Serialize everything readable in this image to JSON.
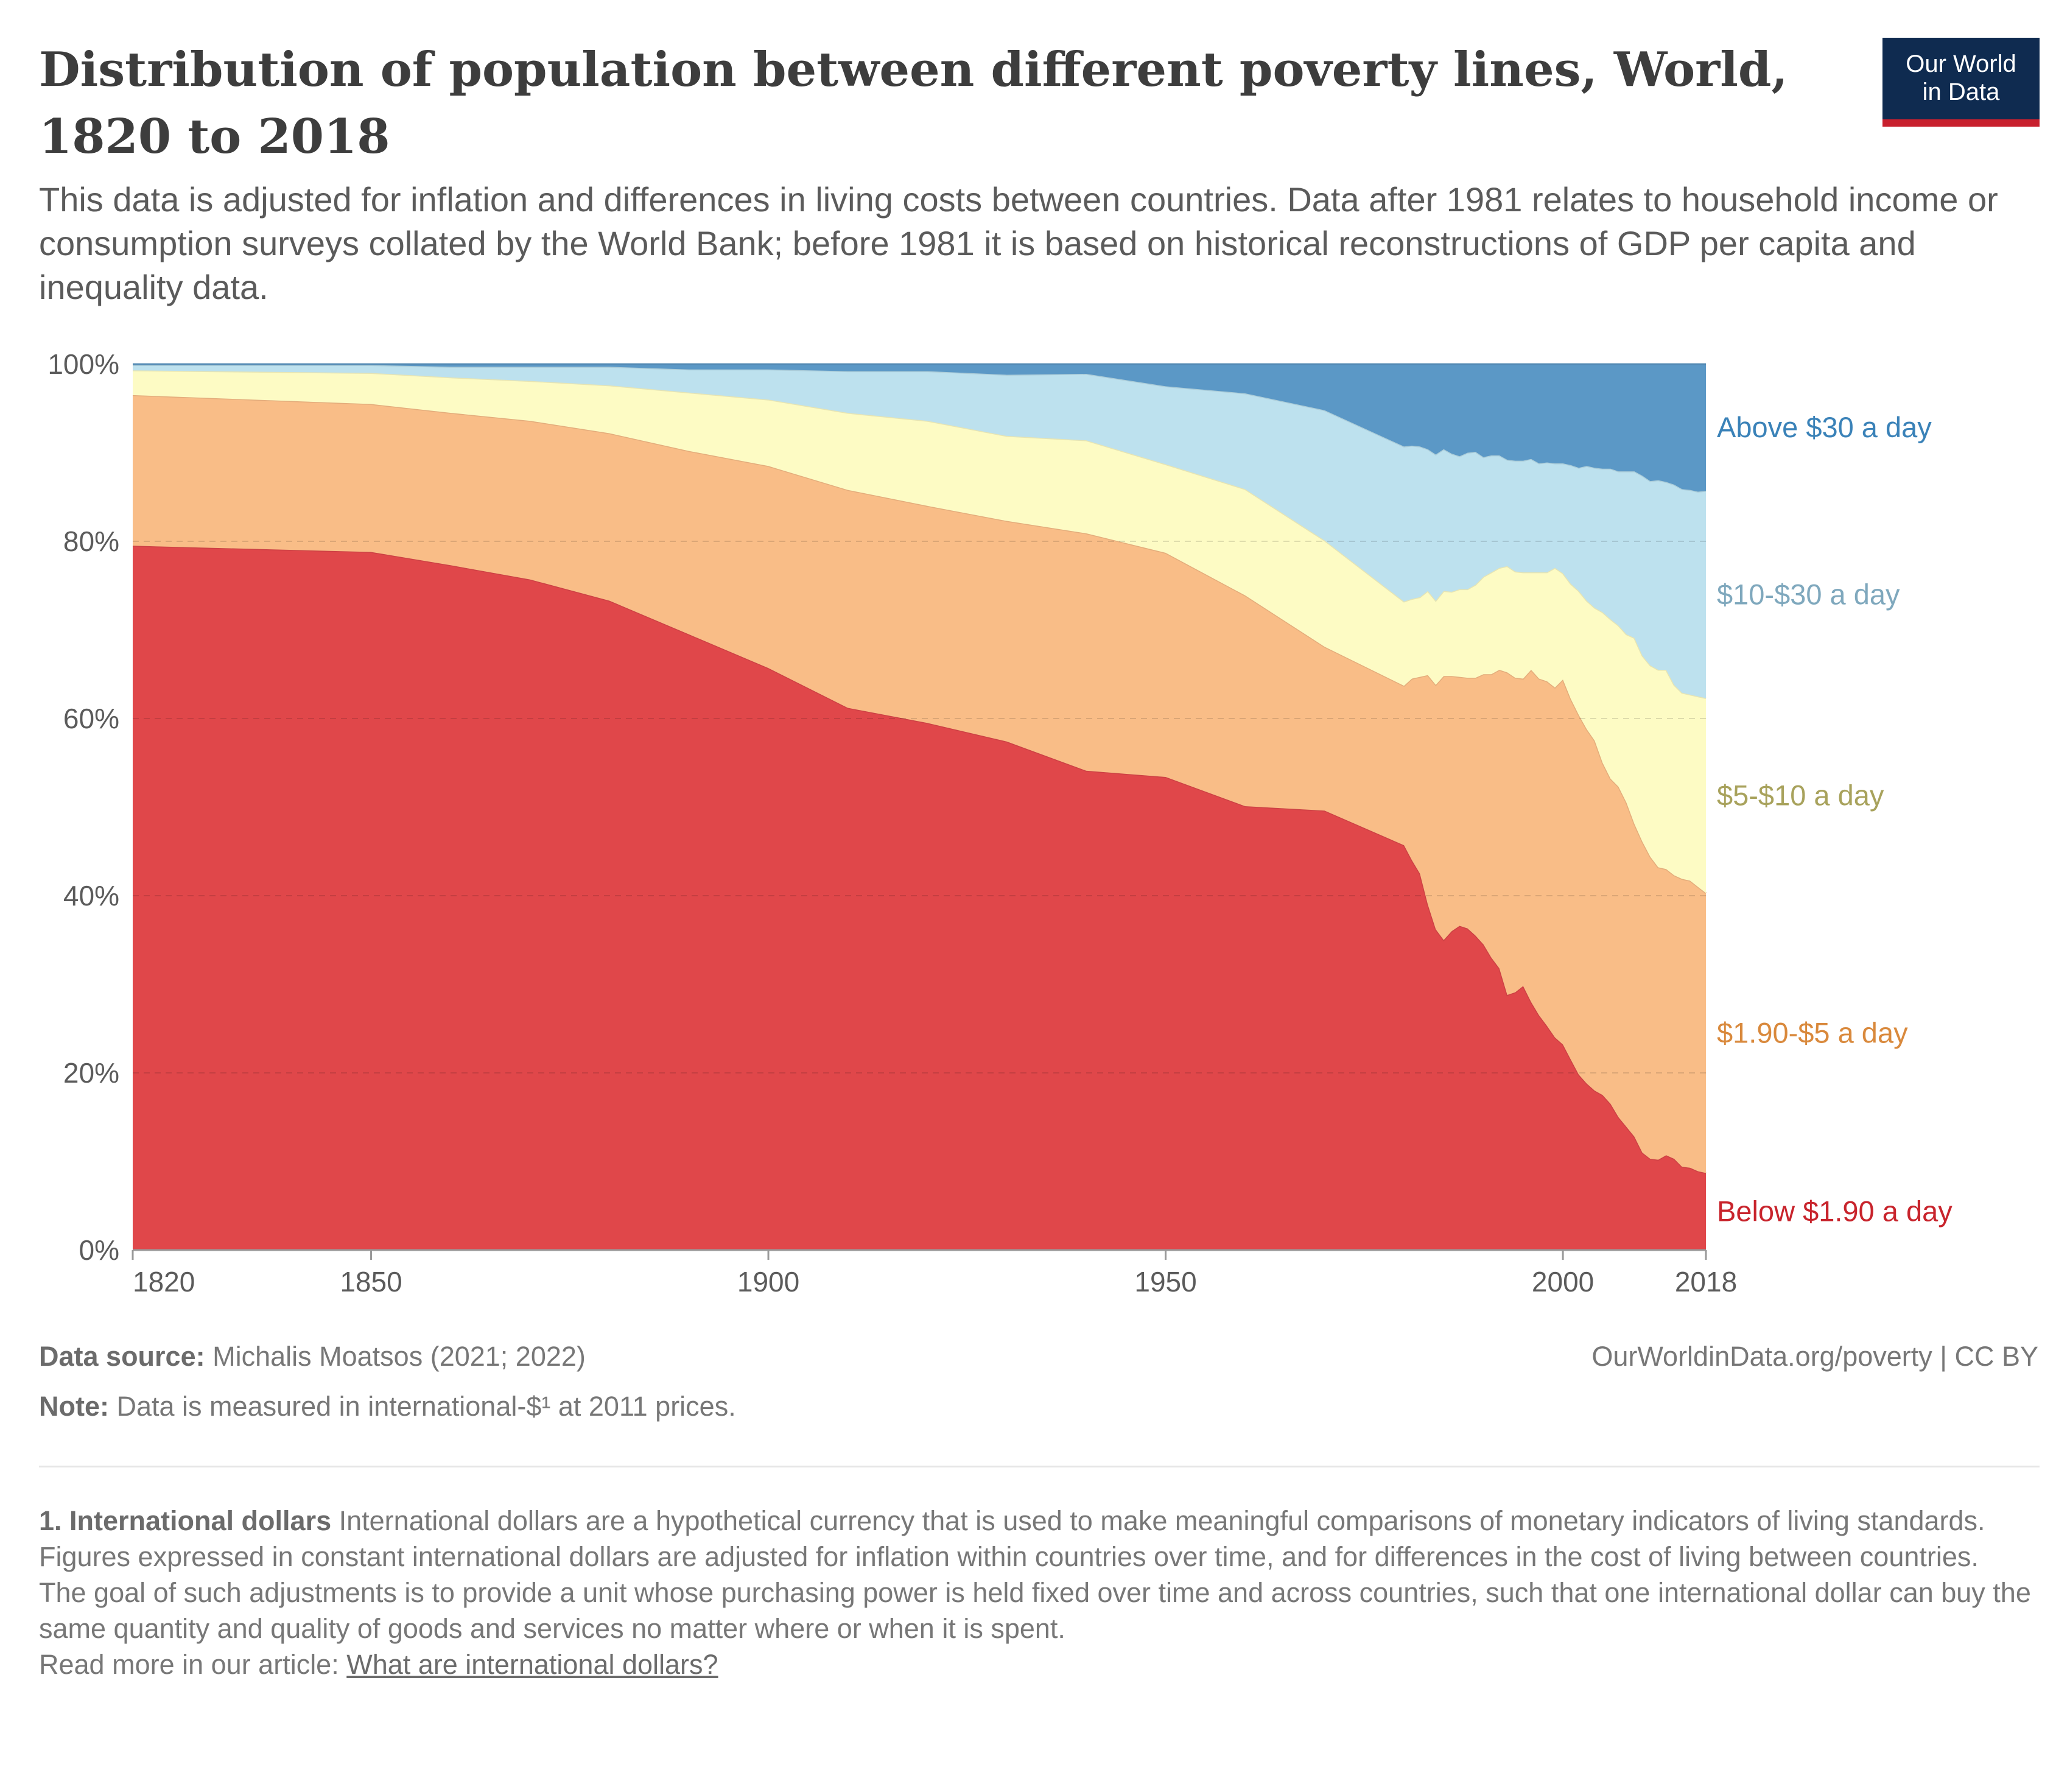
{
  "header": {
    "title": "Distribution of population between different poverty lines, World, 1820 to 2018",
    "subtitle": "This data is adjusted for inflation and differences in living costs between countries. Data after 1981 relates to household income or consumption surveys collated by the World Bank; before 1981 it is based on historical reconstructions of GDP per capita and inequality data.",
    "logo_line1": "Our World",
    "logo_line2": "in Data"
  },
  "footer": {
    "source_label": "Data source:",
    "source_text": "Michalis Moatsos (2021; 2022)",
    "url_text": "OurWorldinData.org/poverty | CC BY",
    "note_label": "Note:",
    "note_text": "Data is measured in international-$¹ at 2011 prices."
  },
  "notes": {
    "heading": "1. International dollars",
    "p1": "International dollars are a hypothetical currency that is used to make meaningful comparisons of monetary indicators of living standards.",
    "p2": "Figures expressed in constant international dollars are adjusted for inflation within countries over time, and for differences in the cost of living between countries.",
    "p3": "The goal of such adjustments is to provide a unit whose purchasing power is held fixed over time and across countries, such that one international dollar can buy the same quantity and quality of goods and services no matter where or when it is spent.",
    "read_more": "Read more in our article:",
    "link_text": "What are international dollars?"
  },
  "chart_data": {
    "type": "area",
    "stacked": true,
    "x": [
      1820,
      1850,
      1860,
      1870,
      1880,
      1890,
      1900,
      1910,
      1920,
      1930,
      1940,
      1950,
      1960,
      1970,
      1980,
      1981,
      1982,
      1983,
      1984,
      1985,
      1986,
      1987,
      1988,
      1989,
      1990,
      1991,
      1992,
      1993,
      1994,
      1995,
      1996,
      1997,
      1998,
      1999,
      2000,
      2001,
      2002,
      2003,
      2004,
      2005,
      2006,
      2007,
      2008,
      2009,
      2010,
      2011,
      2012,
      2013,
      2014,
      2015,
      2016,
      2017,
      2018
    ],
    "xlim": [
      1820,
      2018
    ],
    "ylim": [
      0,
      100
    ],
    "x_ticks": [
      1820,
      1850,
      1900,
      1950,
      2000,
      2018
    ],
    "y_ticks": [
      0,
      20,
      40,
      60,
      80,
      100
    ],
    "y_tick_labels": [
      "0%",
      "20%",
      "40%",
      "60%",
      "80%",
      "100%"
    ],
    "grid": "horizontal dashed",
    "legend": "right, labels at series",
    "series": [
      {
        "name": "Below $1.90 a day",
        "color": "#e0474a",
        "label_color": "#c8242c",
        "values": [
          79.5,
          78.8,
          77.3,
          75.7,
          73.3,
          69.5,
          65.7,
          61.2,
          59.5,
          57.4,
          54.1,
          53.4,
          50.1,
          49.6,
          45.7,
          44.0,
          42.5,
          39.0,
          36.2,
          35.0,
          36.0,
          36.6,
          36.3,
          35.5,
          34.5,
          33.0,
          31.8,
          28.8,
          29.1,
          29.8,
          28.0,
          26.5,
          25.3,
          24.0,
          23.2,
          21.5,
          19.8,
          18.8,
          18.0,
          17.5,
          16.5,
          15.0,
          13.9,
          12.8,
          11.0,
          10.3,
          10.2,
          10.7,
          10.3,
          9.4,
          9.3,
          8.9,
          8.7
        ]
      },
      {
        "name": "$1.90-$5 a day",
        "color": "#f9bd87",
        "label_color": "#d9893c",
        "values": [
          17.0,
          16.7,
          17.2,
          17.9,
          18.9,
          20.7,
          22.8,
          24.6,
          24.5,
          24.9,
          26.8,
          25.3,
          23.8,
          18.5,
          18.0,
          20.5,
          22.2,
          25.9,
          27.6,
          29.8,
          28.8,
          28.1,
          28.3,
          29.1,
          30.5,
          32.0,
          33.7,
          36.4,
          35.5,
          34.7,
          37.5,
          38.0,
          38.9,
          39.5,
          41.2,
          40.7,
          40.6,
          40.0,
          39.5,
          37.5,
          36.7,
          37.3,
          36.6,
          35.3,
          35.1,
          34.1,
          33.0,
          32.3,
          32.0,
          32.5,
          32.4,
          32.1,
          31.6
        ]
      },
      {
        "name": "$5-$10 a day",
        "color": "#fdfbc4",
        "label_color": "#a8a25c",
        "values": [
          2.8,
          3.5,
          4.0,
          4.5,
          5.4,
          6.6,
          7.5,
          8.7,
          9.6,
          9.6,
          10.5,
          10.0,
          12.0,
          12.0,
          9.5,
          9.0,
          9.0,
          9.5,
          9.5,
          9.6,
          9.5,
          9.9,
          10.0,
          10.5,
          11.0,
          11.5,
          11.5,
          12.0,
          12.0,
          12.0,
          11.0,
          12.0,
          12.3,
          13.5,
          12.0,
          13.0,
          14.0,
          14.5,
          15.0,
          17.0,
          18.0,
          18.2,
          19.0,
          21.0,
          21.0,
          21.6,
          22.3,
          22.5,
          21.5,
          21.0,
          21.0,
          21.5,
          22.0
        ]
      },
      {
        "name": "$10-$30 a day",
        "color": "#bde1ee",
        "label_color": "#7fa8bd",
        "values": [
          0.6,
          0.9,
          1.2,
          1.6,
          2.1,
          2.6,
          3.4,
          4.7,
          5.6,
          6.9,
          7.5,
          8.8,
          10.8,
          14.7,
          17.5,
          17.3,
          17.0,
          16.0,
          16.5,
          16.0,
          15.6,
          15.0,
          15.4,
          15.0,
          13.5,
          13.2,
          12.7,
          12.0,
          12.5,
          12.6,
          12.8,
          12.3,
          12.4,
          11.8,
          12.4,
          13.4,
          13.9,
          15.2,
          15.8,
          16.2,
          17.0,
          17.4,
          18.4,
          18.8,
          20.3,
          20.8,
          21.4,
          21.2,
          22.6,
          23.0,
          23.1,
          23.1,
          23.4
        ]
      },
      {
        "name": "Above $30 a day",
        "color": "#5b98c6",
        "label_color": "#3a82b8",
        "values": [
          0.1,
          0.1,
          0.3,
          0.3,
          0.3,
          0.6,
          0.6,
          0.8,
          0.8,
          1.2,
          1.1,
          2.5,
          3.3,
          5.2,
          9.3,
          9.2,
          9.3,
          9.6,
          10.2,
          9.6,
          10.1,
          10.4,
          10.0,
          9.9,
          10.5,
          10.3,
          10.3,
          10.8,
          10.9,
          10.9,
          10.7,
          11.2,
          11.1,
          11.2,
          11.2,
          11.4,
          11.7,
          11.5,
          11.7,
          11.8,
          11.8,
          12.1,
          12.1,
          12.1,
          12.6,
          13.2,
          13.1,
          13.3,
          13.6,
          14.1,
          14.2,
          14.4,
          14.3
        ]
      }
    ]
  }
}
